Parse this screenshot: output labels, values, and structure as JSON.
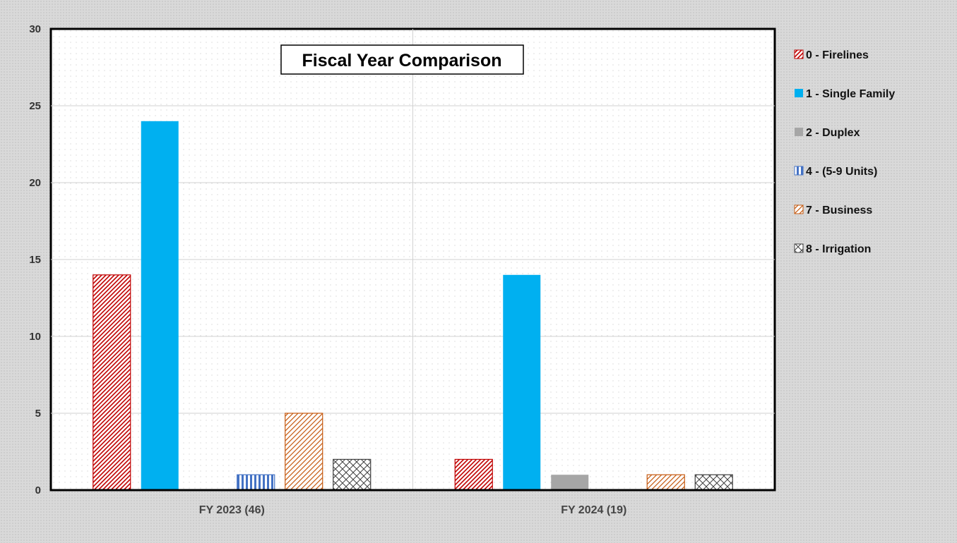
{
  "chart_data": {
    "type": "bar",
    "title": "Fiscal Year Comparison",
    "categories": [
      "FY 2023 (46)",
      "FY 2024 (19)"
    ],
    "ylim": [
      0,
      30
    ],
    "yticks": [
      0,
      5,
      10,
      15,
      20,
      25,
      30
    ],
    "grid": true,
    "legend_position": "right",
    "series": [
      {
        "name": "0 - Firelines",
        "values": [
          14,
          2
        ],
        "color": "#c00000",
        "pattern": "diag-dense"
      },
      {
        "name": "1 - Single Family",
        "values": [
          24,
          14
        ],
        "color": "#00b0f0",
        "pattern": "solid"
      },
      {
        "name": "2 - Duplex",
        "values": [
          0,
          1
        ],
        "color": "#a6a6a6",
        "pattern": "solid"
      },
      {
        "name": "4 - (5-9 Units)",
        "values": [
          1,
          0
        ],
        "color": "#4472c4",
        "pattern": "vertical"
      },
      {
        "name": "7 - Business",
        "values": [
          5,
          1
        ],
        "color": "#c55a11",
        "pattern": "diag-wide"
      },
      {
        "name": "8 - Irrigation",
        "values": [
          2,
          1
        ],
        "color": "#404040",
        "pattern": "cross"
      }
    ]
  }
}
